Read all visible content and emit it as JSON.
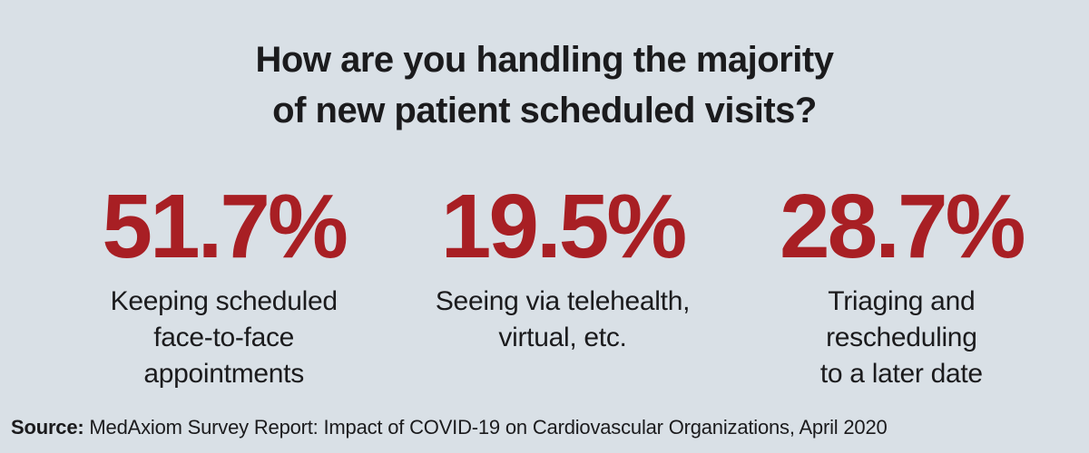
{
  "title": {
    "line1": "How are you handling the majority",
    "line2": "of new patient scheduled visits?"
  },
  "stats": [
    {
      "value": "51.7%",
      "label_lines": [
        "Keeping scheduled",
        "face-to-face",
        "appointments"
      ]
    },
    {
      "value": "19.5%",
      "label_lines": [
        "Seeing via telehealth,",
        "virtual, etc."
      ]
    },
    {
      "value": "28.7%",
      "label_lines": [
        "Triaging and",
        "rescheduling",
        "to a later date"
      ]
    }
  ],
  "source": {
    "label": "Source:",
    "text": " MedAxiom Survey Report: Impact of COVID-19 on Cardiovascular Organizations, April 2020"
  },
  "colors": {
    "background": "#d9e0e6",
    "accent_red": "#a81f24",
    "text_black": "#1b1b1d"
  },
  "chart_data": {
    "type": "table",
    "title": "How are you handling the majority of new patient scheduled visits?",
    "categories": [
      "Keeping scheduled face-to-face appointments",
      "Seeing via telehealth, virtual, etc.",
      "Triaging and rescheduling to a later date"
    ],
    "values": [
      51.7,
      19.5,
      28.7
    ],
    "unit": "%",
    "source": "MedAxiom Survey Report: Impact of COVID-19 on Cardiovascular Organizations, April 2020",
    "layout": "three large stat callouts in a row, title above, source note bottom-left"
  }
}
